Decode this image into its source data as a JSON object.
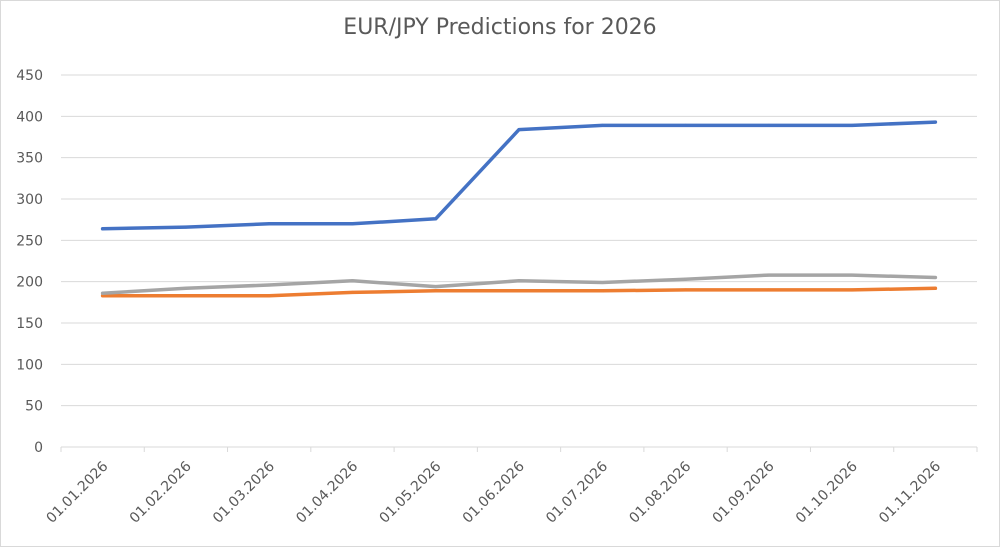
{
  "chart_data": {
    "type": "line",
    "title": "EUR/JPY Predictions for 2026",
    "xlabel": "",
    "ylabel": "",
    "categories": [
      "01.01.2026",
      "01.02.2026",
      "01.03.2026",
      "01.04.2026",
      "01.05.2026",
      "01.06.2026",
      "01.07.2026",
      "01.08.2026",
      "01.09.2026",
      "01.10.2026",
      "01.11.2026"
    ],
    "ylim": [
      0,
      450
    ],
    "yticks": [
      0,
      50,
      100,
      150,
      200,
      250,
      300,
      350,
      400,
      450
    ],
    "grid": true,
    "legend": "none",
    "series": [
      {
        "color": "#4472C4",
        "values": [
          264,
          266,
          270,
          270,
          276,
          384,
          389,
          389,
          389,
          389,
          393
        ]
      },
      {
        "color": "#ED7D31",
        "values": [
          183,
          183,
          183,
          187,
          189,
          189,
          189,
          190,
          190,
          190,
          192
        ]
      },
      {
        "color": "#A5A5A5",
        "values": [
          186,
          192,
          196,
          201,
          194,
          201,
          199,
          203,
          208,
          208,
          205
        ]
      }
    ]
  }
}
